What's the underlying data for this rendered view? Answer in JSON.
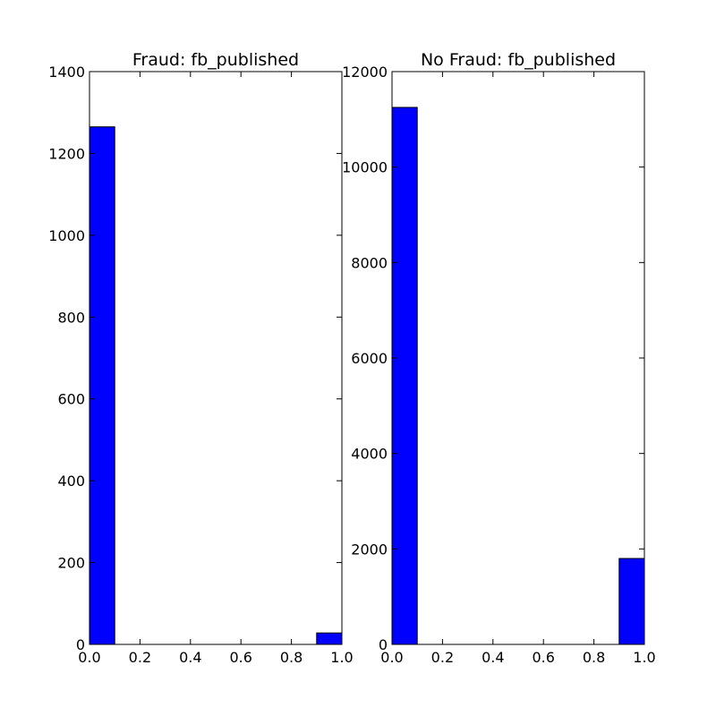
{
  "chart_data": [
    {
      "type": "bar",
      "subtype": "histogram",
      "title": "Fraud: fb_published",
      "xlabel": "",
      "ylabel": "",
      "xlim": [
        0.0,
        1.0
      ],
      "ylim": [
        0,
        1400
      ],
      "xticks": [
        "0.0",
        "0.2",
        "0.4",
        "0.6",
        "0.8",
        "1.0"
      ],
      "yticks": [
        "0",
        "200",
        "400",
        "600",
        "800",
        "1000",
        "1200",
        "1400"
      ],
      "bins": [
        {
          "x0": 0.0,
          "x1": 0.1,
          "value": 1265
        },
        {
          "x0": 0.9,
          "x1": 1.0,
          "value": 28
        }
      ],
      "bar_color": "#0000ff",
      "edge_color": "#000000",
      "grid": false
    },
    {
      "type": "bar",
      "subtype": "histogram",
      "title": "No Fraud: fb_published",
      "xlabel": "",
      "ylabel": "",
      "xlim": [
        0.0,
        1.0
      ],
      "ylim": [
        0,
        12000
      ],
      "xticks": [
        "0.0",
        "0.2",
        "0.4",
        "0.6",
        "0.8",
        "1.0"
      ],
      "yticks": [
        "0",
        "2000",
        "4000",
        "6000",
        "8000",
        "10000",
        "12000"
      ],
      "bins": [
        {
          "x0": 0.0,
          "x1": 0.1,
          "value": 11250
        },
        {
          "x0": 0.9,
          "x1": 1.0,
          "value": 1800
        }
      ],
      "bar_color": "#0000ff",
      "edge_color": "#000000",
      "grid": false
    }
  ]
}
